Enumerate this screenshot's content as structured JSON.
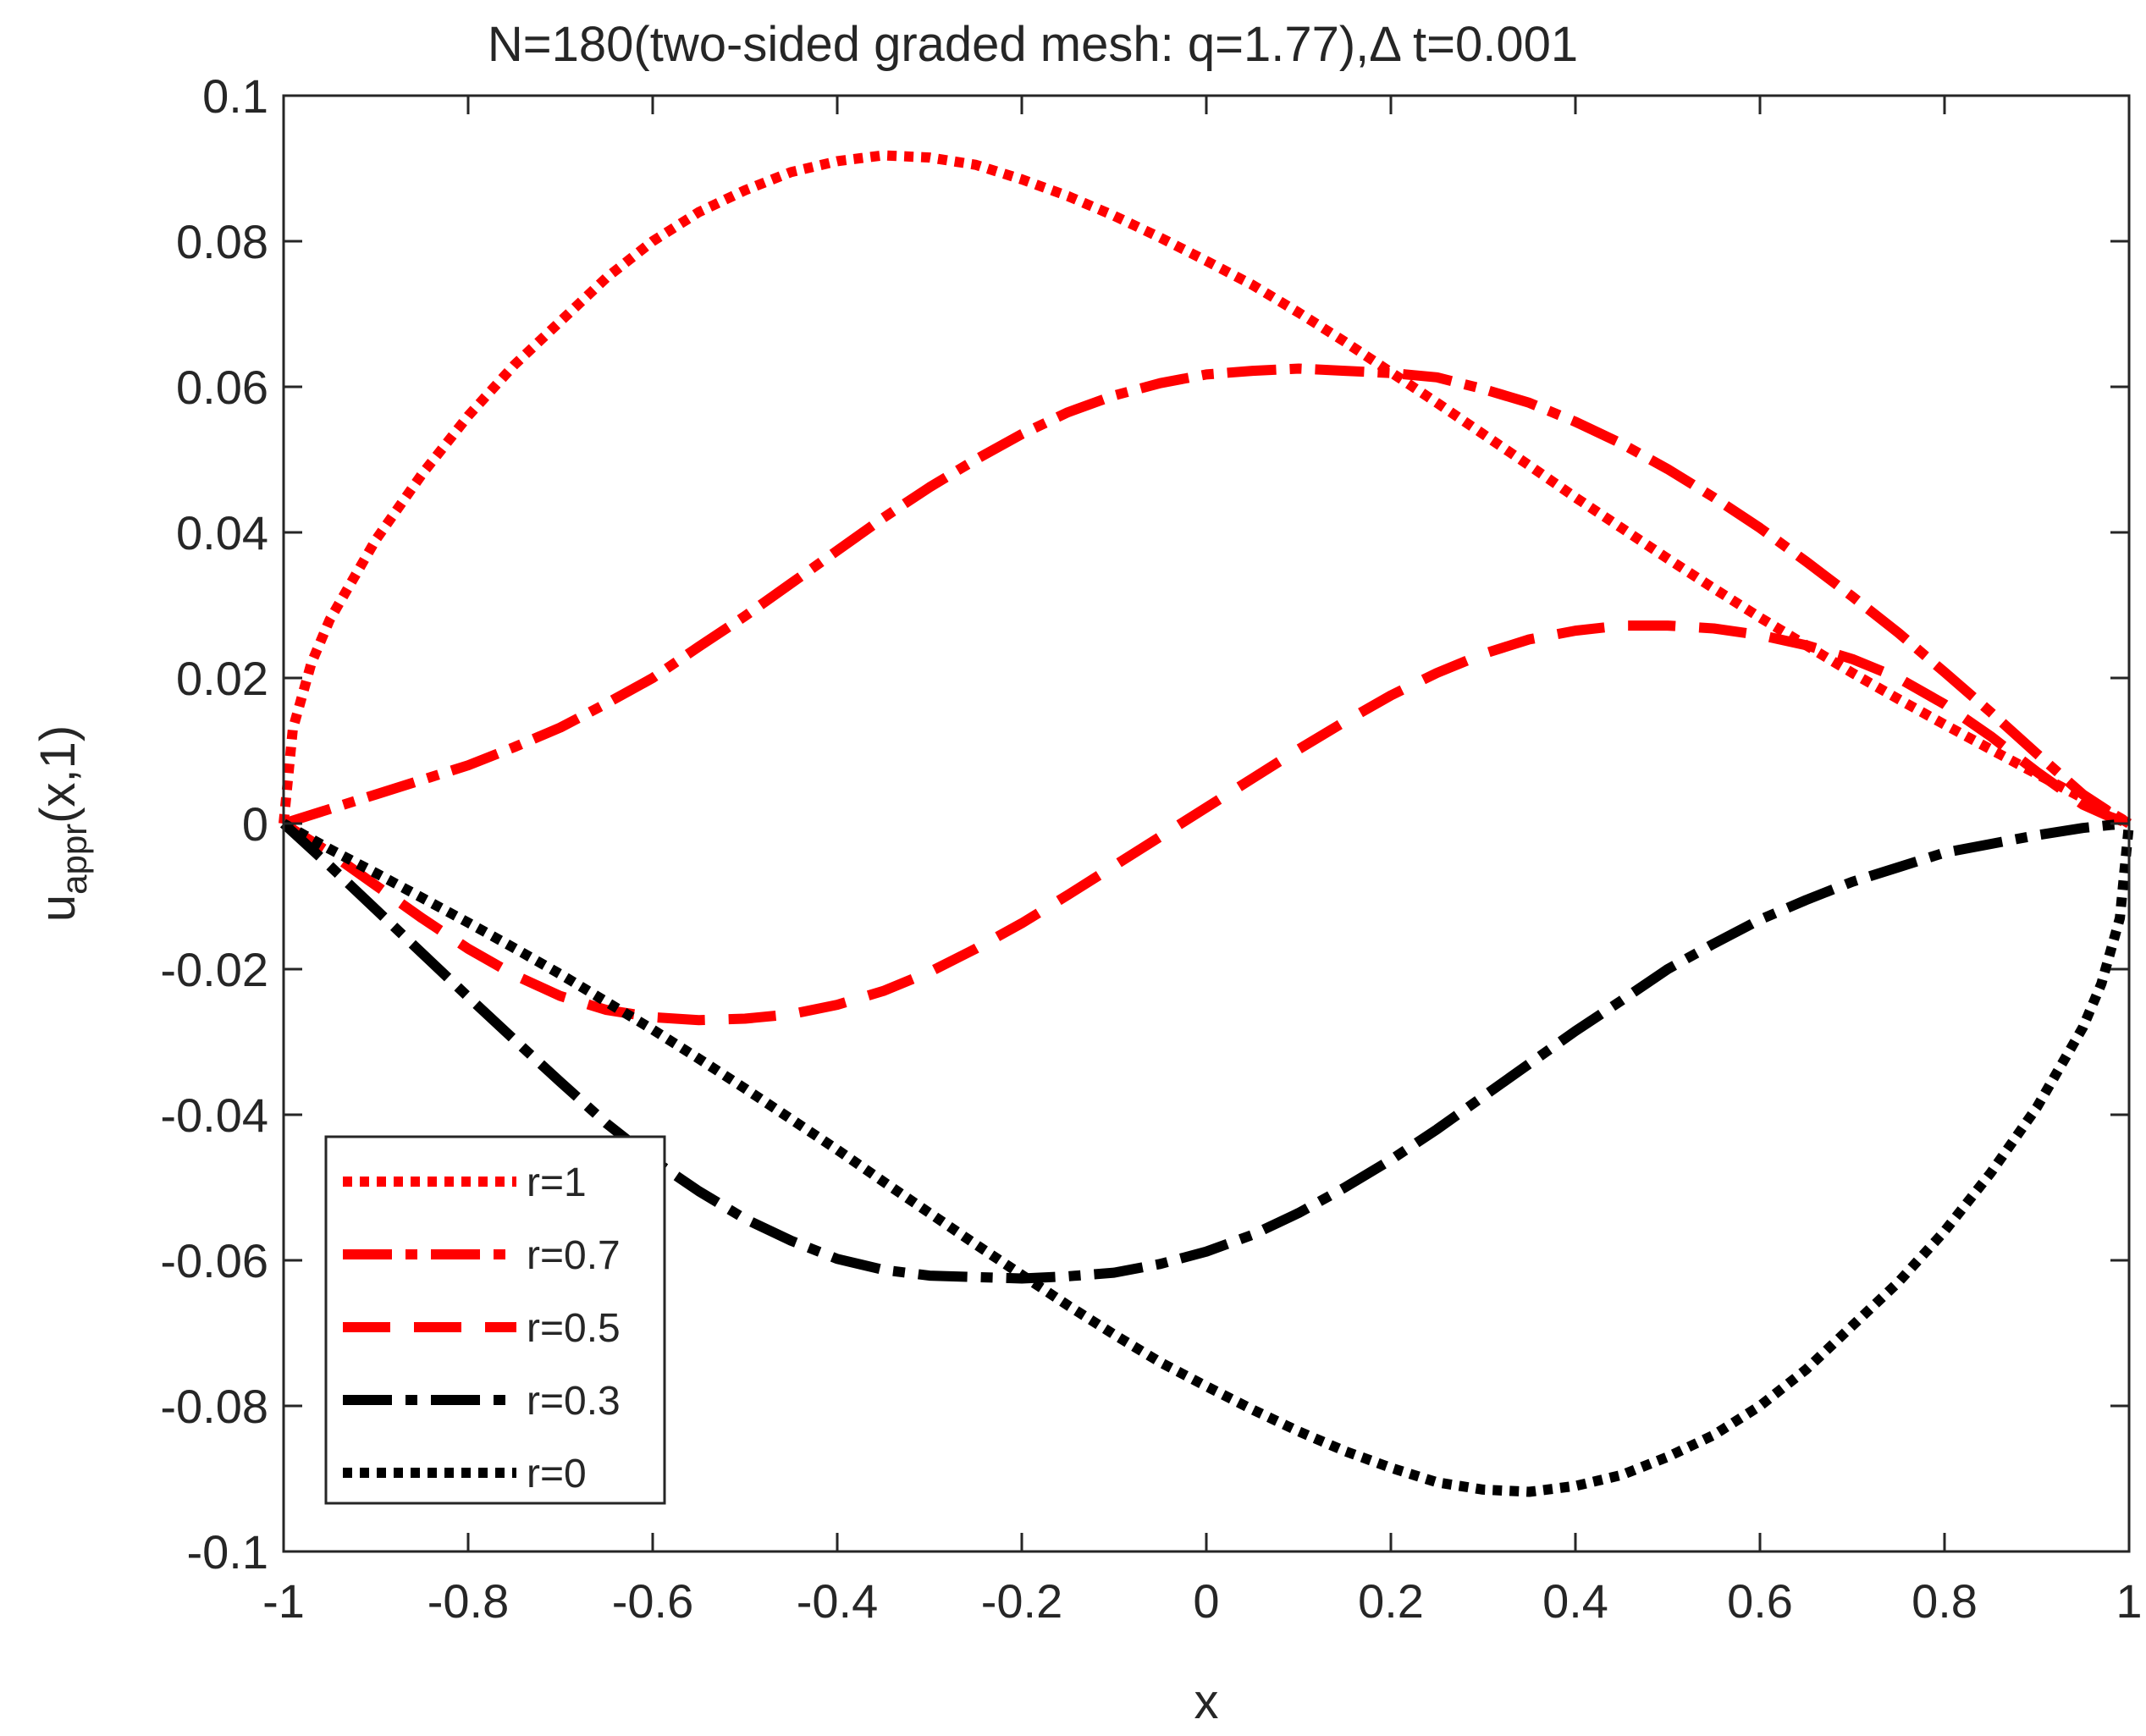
{
  "chart_data": {
    "type": "line",
    "title": "N=180(two-sided graded mesh: q=1.77),Δ t=0.001",
    "xlabel": "x",
    "ylabel": {
      "base": "u",
      "sub": "appr",
      "rest": "(x,1)"
    },
    "xlim": [
      -1,
      1
    ],
    "ylim": [
      -0.1,
      0.1
    ],
    "xticks": [
      -1,
      -0.8,
      -0.6,
      -0.4,
      -0.2,
      0,
      0.2,
      0.4,
      0.6,
      0.8,
      1
    ],
    "xtick_labels": [
      "-1",
      "-0.8",
      "-0.6",
      "-0.4",
      "-0.2",
      "0",
      "0.2",
      "0.4",
      "0.6",
      "0.8",
      "1"
    ],
    "yticks": [
      -0.1,
      -0.08,
      -0.06,
      -0.04,
      -0.02,
      0,
      0.02,
      0.04,
      0.06,
      0.08,
      0.1
    ],
    "ytick_labels": [
      "-0.1",
      "-0.08",
      "-0.06",
      "-0.04",
      "-0.02",
      "0",
      "0.02",
      "0.04",
      "0.06",
      "0.08",
      "0.1"
    ],
    "grid": false,
    "legend_position": "bottom-left",
    "series": [
      {
        "name": "r=1",
        "color": "#ff0000",
        "style": "dotted",
        "x": [
          -1,
          -0.99,
          -0.97,
          -0.95,
          -0.9,
          -0.85,
          -0.8,
          -0.75,
          -0.7,
          -0.65,
          -0.6,
          -0.55,
          -0.5,
          -0.45,
          -0.4,
          -0.35,
          -0.3,
          -0.25,
          -0.2,
          -0.15,
          -0.1,
          -0.05,
          0,
          0.05,
          0.1,
          0.15,
          0.2,
          0.25,
          0.3,
          0.35,
          0.4,
          0.45,
          0.5,
          0.55,
          0.6,
          0.65,
          0.7,
          0.75,
          0.8,
          0.85,
          0.9,
          0.95,
          0.97,
          0.99,
          1
        ],
        "y": [
          0,
          0.013,
          0.022,
          0.028,
          0.039,
          0.048,
          0.056,
          0.063,
          0.069,
          0.075,
          0.08,
          0.084,
          0.087,
          0.0895,
          0.091,
          0.0918,
          0.0915,
          0.0905,
          0.0885,
          0.0862,
          0.0835,
          0.0805,
          0.0773,
          0.074,
          0.0702,
          0.0662,
          0.062,
          0.0578,
          0.0535,
          0.0492,
          0.0448,
          0.0406,
          0.0364,
          0.0323,
          0.0283,
          0.0245,
          0.0207,
          0.0171,
          0.0136,
          0.0102,
          0.0068,
          0.0035,
          0.0022,
          0.0008,
          0
        ]
      },
      {
        "name": "r=0.7",
        "color": "#ff0000",
        "style": "dashdot",
        "x": [
          -1,
          -0.95,
          -0.9,
          -0.85,
          -0.8,
          -0.75,
          -0.7,
          -0.65,
          -0.6,
          -0.55,
          -0.5,
          -0.45,
          -0.4,
          -0.35,
          -0.3,
          -0.25,
          -0.2,
          -0.15,
          -0.1,
          -0.05,
          0,
          0.05,
          0.1,
          0.15,
          0.2,
          0.25,
          0.3,
          0.35,
          0.4,
          0.45,
          0.5,
          0.55,
          0.6,
          0.65,
          0.7,
          0.75,
          0.8,
          0.85,
          0.9,
          0.95,
          0.98,
          1
        ],
        "y": [
          0,
          0.002,
          0.004,
          0.006,
          0.008,
          0.0105,
          0.0132,
          0.0165,
          0.02,
          0.0243,
          0.0285,
          0.033,
          0.0375,
          0.042,
          0.0462,
          0.05,
          0.0535,
          0.0565,
          0.0588,
          0.0605,
          0.0617,
          0.0622,
          0.0625,
          0.0622,
          0.0619,
          0.0613,
          0.0597,
          0.0578,
          0.0552,
          0.0522,
          0.0487,
          0.0448,
          0.0406,
          0.036,
          0.0312,
          0.0262,
          0.0208,
          0.0153,
          0.0096,
          0.004,
          0.0015,
          0
        ]
      },
      {
        "name": "r=0.5",
        "color": "#ff0000",
        "style": "dashed",
        "x": [
          -1,
          -0.95,
          -0.9,
          -0.85,
          -0.8,
          -0.75,
          -0.7,
          -0.65,
          -0.6,
          -0.55,
          -0.5,
          -0.45,
          -0.4,
          -0.35,
          -0.3,
          -0.25,
          -0.2,
          -0.15,
          -0.1,
          -0.05,
          0,
          0.05,
          0.1,
          0.15,
          0.2,
          0.25,
          0.3,
          0.35,
          0.4,
          0.45,
          0.5,
          0.55,
          0.6,
          0.65,
          0.7,
          0.75,
          0.8,
          0.85,
          0.9,
          0.95,
          0.98,
          1
        ],
        "y": [
          0,
          -0.004,
          -0.0085,
          -0.013,
          -0.0172,
          -0.0208,
          -0.0237,
          -0.0256,
          -0.0266,
          -0.027,
          -0.0268,
          -0.0262,
          -0.0249,
          -0.023,
          -0.0204,
          -0.0172,
          -0.0137,
          -0.0098,
          -0.0058,
          -0.0018,
          0.0022,
          0.0062,
          0.0102,
          0.014,
          0.0176,
          0.0207,
          0.0233,
          0.0253,
          0.0265,
          0.0272,
          0.0272,
          0.0268,
          0.0259,
          0.0245,
          0.0226,
          0.02,
          0.0164,
          0.012,
          0.0071,
          0.0026,
          0.0009,
          0
        ]
      },
      {
        "name": "r=0.3",
        "color": "#000000",
        "style": "dashdot",
        "x": [
          -1,
          -0.95,
          -0.9,
          -0.85,
          -0.8,
          -0.75,
          -0.7,
          -0.65,
          -0.6,
          -0.55,
          -0.5,
          -0.45,
          -0.4,
          -0.35,
          -0.3,
          -0.25,
          -0.2,
          -0.15,
          -0.1,
          -0.05,
          0,
          0.05,
          0.1,
          0.15,
          0.2,
          0.25,
          0.3,
          0.35,
          0.4,
          0.45,
          0.5,
          0.55,
          0.6,
          0.65,
          0.7,
          0.75,
          0.8,
          0.85,
          0.9,
          0.95,
          0.98,
          1
        ],
        "y": [
          0,
          -0.0058,
          -0.0118,
          -0.0178,
          -0.0238,
          -0.0297,
          -0.0355,
          -0.0412,
          -0.0462,
          -0.0505,
          -0.0543,
          -0.0573,
          -0.0598,
          -0.0613,
          -0.0621,
          -0.0623,
          -0.0625,
          -0.0622,
          -0.0617,
          -0.0605,
          -0.0588,
          -0.0565,
          -0.0535,
          -0.05,
          -0.0462,
          -0.042,
          -0.0375,
          -0.033,
          -0.0285,
          -0.0243,
          -0.02,
          -0.0165,
          -0.0132,
          -0.0105,
          -0.008,
          -0.006,
          -0.004,
          -0.0028,
          -0.0016,
          -0.0006,
          -0.0002,
          0
        ]
      },
      {
        "name": "r=0",
        "color": "#000000",
        "style": "dotted",
        "x": [
          -1,
          -0.95,
          -0.9,
          -0.85,
          -0.8,
          -0.75,
          -0.7,
          -0.65,
          -0.6,
          -0.55,
          -0.5,
          -0.45,
          -0.4,
          -0.35,
          -0.3,
          -0.25,
          -0.2,
          -0.15,
          -0.1,
          -0.05,
          0,
          0.05,
          0.1,
          0.15,
          0.2,
          0.25,
          0.3,
          0.35,
          0.4,
          0.45,
          0.5,
          0.55,
          0.6,
          0.65,
          0.7,
          0.75,
          0.8,
          0.85,
          0.9,
          0.95,
          0.97,
          0.99,
          1
        ],
        "y": [
          0,
          -0.0035,
          -0.0068,
          -0.0102,
          -0.0136,
          -0.0171,
          -0.0207,
          -0.0245,
          -0.0283,
          -0.0323,
          -0.0364,
          -0.0406,
          -0.0448,
          -0.0492,
          -0.0535,
          -0.0578,
          -0.062,
          -0.0662,
          -0.0702,
          -0.074,
          -0.0773,
          -0.0805,
          -0.0835,
          -0.0862,
          -0.0885,
          -0.0905,
          -0.0915,
          -0.0918,
          -0.091,
          -0.0895,
          -0.087,
          -0.084,
          -0.08,
          -0.075,
          -0.069,
          -0.063,
          -0.056,
          -0.048,
          -0.039,
          -0.028,
          -0.022,
          -0.013,
          0
        ]
      }
    ]
  }
}
